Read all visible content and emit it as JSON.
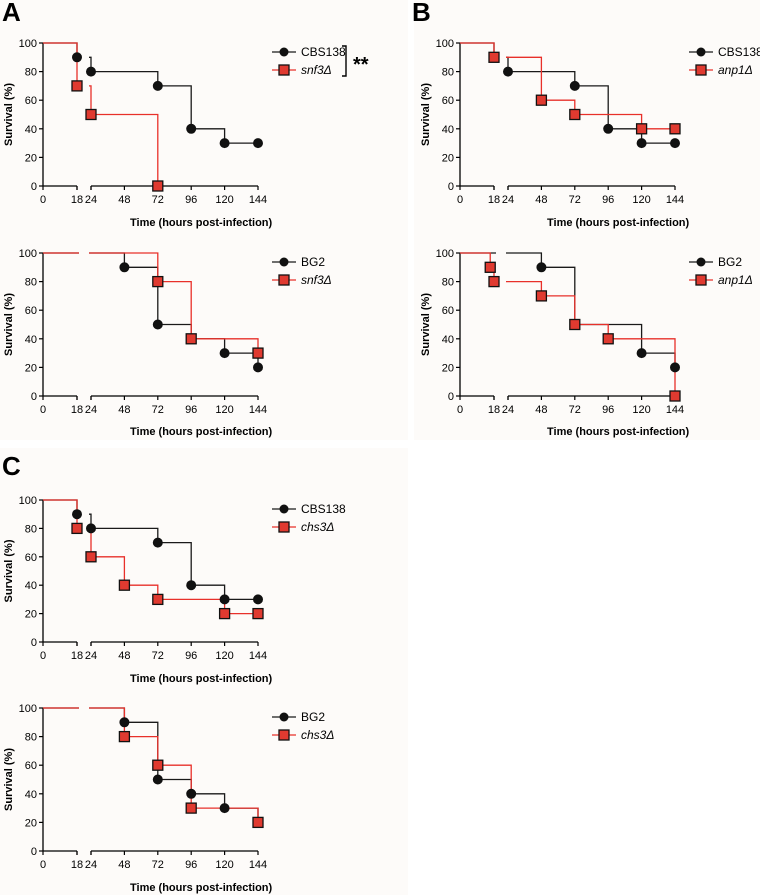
{
  "panels": [
    {
      "letter": "A"
    },
    {
      "letter": "B"
    },
    {
      "letter": "C"
    }
  ],
  "colors": {
    "wild_type": "#1a1a1a",
    "mutant": "#e8302a",
    "mutant_marker": "#e03a30",
    "axis": "#000000"
  },
  "chart_data": [
    {
      "type": "line",
      "step": true,
      "panel": "A",
      "xlabel": "Time  (hours post-infection)",
      "ylabel": "Survival (%)",
      "xticks": [
        "0",
        "18",
        "24",
        "48",
        "72",
        "96",
        "120",
        "144"
      ],
      "yticks": [
        "0",
        "20",
        "40",
        "60",
        "80",
        "100"
      ],
      "ylim": [
        0,
        100
      ],
      "annotation": "**",
      "series": [
        {
          "name": "CBS138",
          "italic": false,
          "marker": "circle",
          "points": [
            [
              0,
              100
            ],
            [
              18,
              90
            ],
            [
              24,
              80
            ],
            [
              72,
              70
            ],
            [
              96,
              40
            ],
            [
              120,
              30
            ],
            [
              144,
              30
            ]
          ]
        },
        {
          "name": "snf3Δ",
          "italic": true,
          "marker": "square",
          "points": [
            [
              0,
              100
            ],
            [
              18,
              70
            ],
            [
              24,
              50
            ],
            [
              72,
              0
            ]
          ]
        }
      ]
    },
    {
      "type": "line",
      "step": true,
      "panel": "A",
      "xlabel": "Time  (hours post-infection)",
      "ylabel": "Survival (%)",
      "xticks": [
        "0",
        "18",
        "24",
        "48",
        "72",
        "96",
        "120",
        "144"
      ],
      "yticks": [
        "0",
        "20",
        "40",
        "60",
        "80",
        "100"
      ],
      "ylim": [
        0,
        100
      ],
      "series": [
        {
          "name": "BG2",
          "italic": false,
          "marker": "circle",
          "points": [
            [
              0,
              100
            ],
            [
              48,
              90
            ],
            [
              72,
              50
            ],
            [
              96,
              40
            ],
            [
              120,
              30
            ],
            [
              144,
              20
            ]
          ]
        },
        {
          "name": "snf3Δ",
          "italic": true,
          "marker": "square",
          "points": [
            [
              0,
              100
            ],
            [
              72,
              80
            ],
            [
              96,
              40
            ],
            [
              144,
              30
            ]
          ]
        }
      ]
    },
    {
      "type": "line",
      "step": true,
      "panel": "B",
      "xlabel": "Time  (hours post-infection)",
      "ylabel": "Survival (%)",
      "xticks": [
        "0",
        "18",
        "24",
        "48",
        "72",
        "96",
        "120",
        "144"
      ],
      "yticks": [
        "0",
        "20",
        "40",
        "60",
        "80",
        "100"
      ],
      "ylim": [
        0,
        100
      ],
      "series": [
        {
          "name": "CBS138",
          "italic": false,
          "marker": "circle",
          "points": [
            [
              0,
              100
            ],
            [
              18,
              90
            ],
            [
              24,
              80
            ],
            [
              72,
              70
            ],
            [
              96,
              40
            ],
            [
              120,
              30
            ],
            [
              144,
              30
            ]
          ]
        },
        {
          "name": "anp1Δ",
          "italic": true,
          "marker": "square",
          "points": [
            [
              0,
              100
            ],
            [
              18,
              90
            ],
            [
              48,
              60
            ],
            [
              72,
              50
            ],
            [
              120,
              40
            ],
            [
              144,
              40
            ]
          ]
        }
      ]
    },
    {
      "type": "line",
      "step": true,
      "panel": "B",
      "xlabel": "Time  (hours post-infection)",
      "ylabel": "Survival (%)",
      "xticks": [
        "0",
        "18",
        "24",
        "48",
        "72",
        "96",
        "120",
        "144"
      ],
      "yticks": [
        "0",
        "20",
        "40",
        "60",
        "80",
        "100"
      ],
      "ylim": [
        0,
        100
      ],
      "series": [
        {
          "name": "BG2",
          "italic": false,
          "marker": "circle",
          "points": [
            [
              0,
              100
            ],
            [
              48,
              90
            ],
            [
              72,
              50
            ],
            [
              120,
              30
            ],
            [
              144,
              20
            ]
          ]
        },
        {
          "name": "anp1Δ",
          "italic": true,
          "marker": "square",
          "points": [
            [
              0,
              100
            ],
            [
              16,
              90
            ],
            [
              18,
              80
            ],
            [
              48,
              70
            ],
            [
              72,
              50
            ],
            [
              96,
              40
            ],
            [
              144,
              0
            ]
          ]
        }
      ]
    },
    {
      "type": "line",
      "step": true,
      "panel": "C",
      "xlabel": "Time  (hours post-infection)",
      "ylabel": "Survival (%)",
      "xticks": [
        "0",
        "18",
        "24",
        "48",
        "72",
        "96",
        "120",
        "144"
      ],
      "yticks": [
        "0",
        "20",
        "40",
        "60",
        "80",
        "100"
      ],
      "ylim": [
        0,
        100
      ],
      "series": [
        {
          "name": "CBS138",
          "italic": false,
          "marker": "circle",
          "points": [
            [
              0,
              100
            ],
            [
              18,
              90
            ],
            [
              24,
              80
            ],
            [
              72,
              70
            ],
            [
              96,
              40
            ],
            [
              120,
              30
            ],
            [
              144,
              30
            ]
          ]
        },
        {
          "name": "chs3Δ",
          "italic": true,
          "marker": "square",
          "points": [
            [
              0,
              100
            ],
            [
              18,
              80
            ],
            [
              24,
              60
            ],
            [
              48,
              40
            ],
            [
              72,
              30
            ],
            [
              120,
              20
            ],
            [
              144,
              20
            ]
          ]
        }
      ]
    },
    {
      "type": "line",
      "step": true,
      "panel": "C",
      "xlabel": "Time  (hours post-infection)",
      "ylabel": "Survival (%)",
      "xticks": [
        "0",
        "18",
        "24",
        "48",
        "72",
        "96",
        "120",
        "144"
      ],
      "yticks": [
        "0",
        "20",
        "40",
        "60",
        "80",
        "100"
      ],
      "ylim": [
        0,
        100
      ],
      "series": [
        {
          "name": "BG2",
          "italic": false,
          "marker": "circle",
          "points": [
            [
              0,
              100
            ],
            [
              48,
              90
            ],
            [
              72,
              50
            ],
            [
              96,
              40
            ],
            [
              120,
              30
            ],
            [
              144,
              20
            ]
          ]
        },
        {
          "name": "chs3Δ",
          "italic": true,
          "marker": "square",
          "points": [
            [
              0,
              100
            ],
            [
              48,
              80
            ],
            [
              72,
              60
            ],
            [
              96,
              30
            ],
            [
              144,
              20
            ]
          ]
        }
      ]
    }
  ]
}
